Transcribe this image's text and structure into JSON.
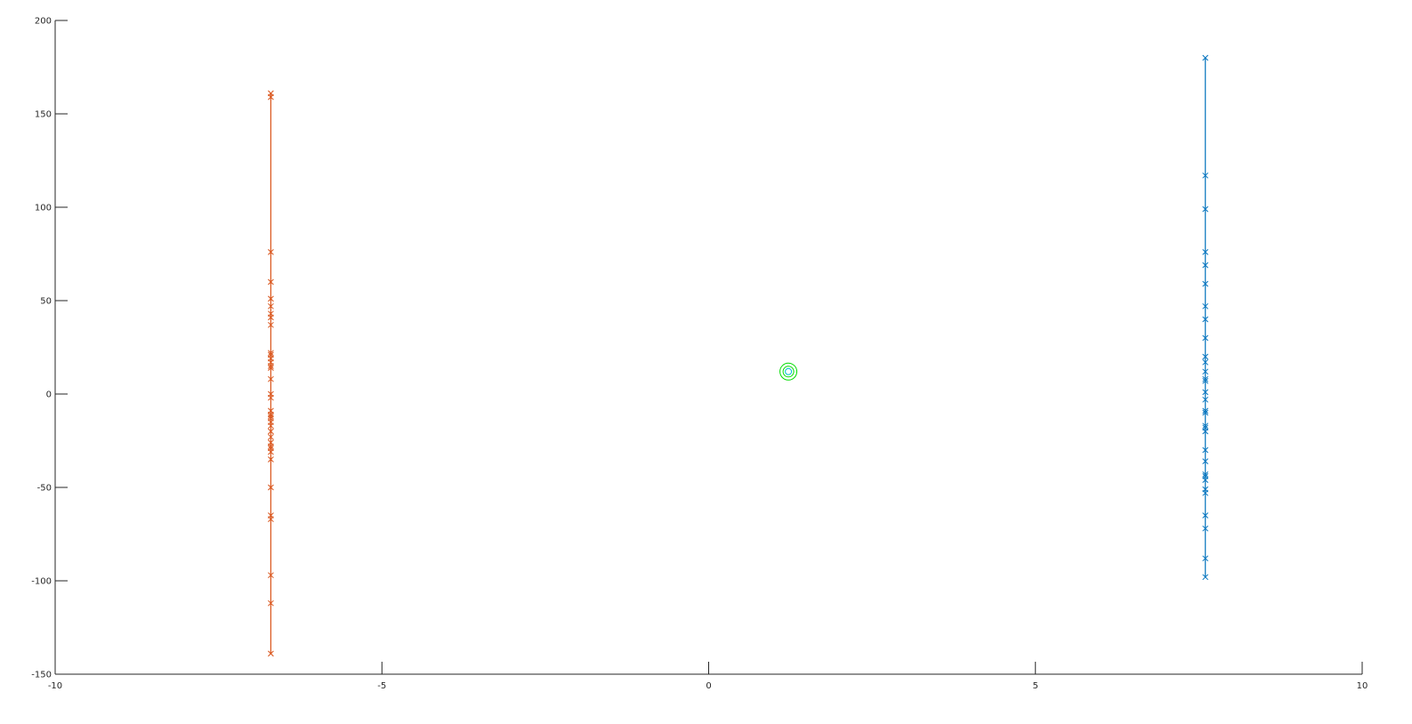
{
  "chart_data": {
    "type": "scatter",
    "title": "",
    "xlabel": "",
    "ylabel": "",
    "xlim": [
      -10,
      10
    ],
    "ylim": [
      -150,
      200
    ],
    "grid": false,
    "legend": "none",
    "x_ticks": [
      {
        "value": -10,
        "label": "-10"
      },
      {
        "value": -5,
        "label": "-5"
      },
      {
        "value": 0,
        "label": "0"
      },
      {
        "value": 5,
        "label": "5"
      },
      {
        "value": 10,
        "label": "10"
      }
    ],
    "y_ticks": [
      {
        "value": -150,
        "label": "-150"
      },
      {
        "value": -100,
        "label": "-100"
      },
      {
        "value": -50,
        "label": "-50"
      },
      {
        "value": 0,
        "label": "0"
      },
      {
        "value": 50,
        "label": "50"
      },
      {
        "value": 100,
        "label": "100"
      },
      {
        "value": 150,
        "label": "150"
      },
      {
        "value": 200,
        "label": "200"
      }
    ],
    "series": [
      {
        "color": "#d95319",
        "marker": "x",
        "line": "vertical",
        "x": -6.7,
        "y": [
          161,
          159,
          76,
          60,
          51,
          47,
          43,
          41,
          37,
          22,
          21,
          19,
          17,
          15,
          14,
          8,
          0,
          -2,
          -9,
          -11,
          -12,
          -13,
          -15,
          -17,
          -20,
          -23,
          -26,
          -28,
          -29,
          -31,
          -35,
          -50,
          -65,
          -67,
          -97,
          -112,
          -139
        ]
      },
      {
        "color": "#0072bd",
        "marker": "x",
        "line": "vertical",
        "x": 7.6,
        "y": [
          180,
          117,
          99,
          76,
          69,
          59,
          47,
          40,
          30,
          20,
          17,
          12,
          8,
          7,
          1,
          -3,
          -9,
          -10,
          -17,
          -18,
          -20,
          -30,
          -36,
          -43,
          -44,
          -46,
          -51,
          -53,
          -65,
          -72,
          -88,
          -98
        ]
      },
      {
        "color": "#00dd00",
        "marker": "concentric-circles",
        "line": "none",
        "x": 1.22,
        "y": [
          12
        ]
      }
    ]
  }
}
